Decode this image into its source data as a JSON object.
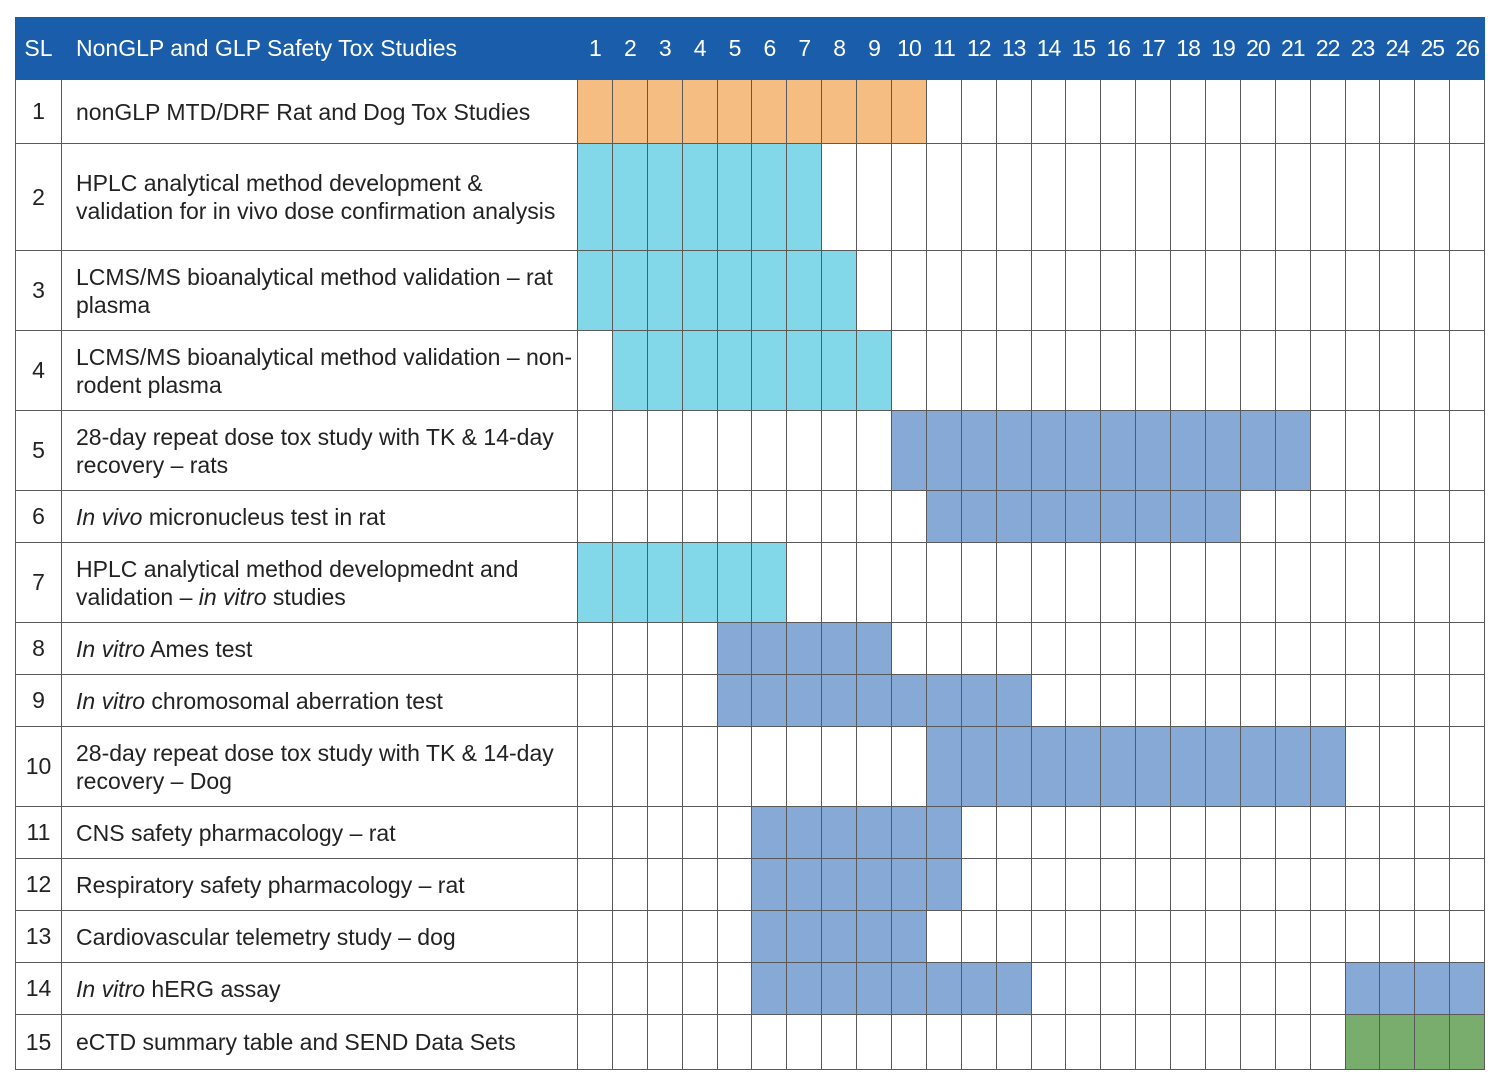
{
  "table": {
    "header": {
      "sl": "SL",
      "title": "NonGLP and GLP Safety Tox Studies"
    },
    "colors": {
      "header_bg": "#1a5eab",
      "orange": "#f5bd82",
      "cyan": "#82d8e9",
      "blue": "#86a9d6",
      "green": "#78ad6e"
    }
  },
  "chart_data": {
    "type": "table",
    "weeks": [
      1,
      2,
      3,
      4,
      5,
      6,
      7,
      8,
      9,
      10,
      11,
      12,
      13,
      14,
      15,
      16,
      17,
      18,
      19,
      20,
      21,
      22,
      23,
      24,
      25,
      26
    ],
    "rows": [
      {
        "sl": "1",
        "segments": [
          {
            "text": "nonGLP MTD/DRF Rat and Dog Tox Studies",
            "italic": false
          }
        ],
        "bars": [
          {
            "start": 1,
            "end": 10,
            "color": "orange"
          }
        ]
      },
      {
        "sl": "2",
        "segments": [
          {
            "text": "HPLC analytical method development & validation for in vivo dose confirmation analysis",
            "italic": false
          }
        ],
        "bars": [
          {
            "start": 1,
            "end": 7,
            "color": "cyan"
          }
        ]
      },
      {
        "sl": "3",
        "segments": [
          {
            "text": "LCMS/MS bioanalytical method validation – rat plasma",
            "italic": false
          }
        ],
        "bars": [
          {
            "start": 1,
            "end": 8,
            "color": "cyan"
          }
        ]
      },
      {
        "sl": "4",
        "segments": [
          {
            "text": "LCMS/MS bioanalytical method validation – non-rodent plasma",
            "italic": false
          }
        ],
        "bars": [
          {
            "start": 2,
            "end": 9,
            "color": "cyan"
          }
        ]
      },
      {
        "sl": "5",
        "segments": [
          {
            "text": "28-day repeat dose tox study with TK & 14-day recovery – rats",
            "italic": false
          }
        ],
        "bars": [
          {
            "start": 10,
            "end": 21,
            "color": "blue"
          }
        ]
      },
      {
        "sl": "6",
        "segments": [
          {
            "text": "In vivo",
            "italic": true
          },
          {
            "text": " micronucleus test in rat",
            "italic": false
          }
        ],
        "bars": [
          {
            "start": 11,
            "end": 19,
            "color": "blue"
          }
        ]
      },
      {
        "sl": "7",
        "segments": [
          {
            "text": "HPLC analytical method developmednt and validation – ",
            "italic": false
          },
          {
            "text": "in vitro",
            "italic": true
          },
          {
            "text": " studies",
            "italic": false
          }
        ],
        "bars": [
          {
            "start": 1,
            "end": 6,
            "color": "cyan"
          }
        ]
      },
      {
        "sl": "8",
        "segments": [
          {
            "text": "In vitro",
            "italic": true
          },
          {
            "text": " Ames test",
            "italic": false
          }
        ],
        "bars": [
          {
            "start": 5,
            "end": 9,
            "color": "blue"
          }
        ]
      },
      {
        "sl": "9",
        "segments": [
          {
            "text": "In vitro",
            "italic": true
          },
          {
            "text": " chromosomal aberration test",
            "italic": false
          }
        ],
        "bars": [
          {
            "start": 5,
            "end": 13,
            "color": "blue"
          }
        ]
      },
      {
        "sl": "10",
        "segments": [
          {
            "text": "28-day repeat dose tox study with TK & 14-day recovery – Dog",
            "italic": false
          }
        ],
        "bars": [
          {
            "start": 11,
            "end": 22,
            "color": "blue"
          }
        ]
      },
      {
        "sl": "11",
        "segments": [
          {
            "text": "CNS safety pharmacology – rat",
            "italic": false
          }
        ],
        "bars": [
          {
            "start": 6,
            "end": 11,
            "color": "blue"
          }
        ]
      },
      {
        "sl": "12",
        "segments": [
          {
            "text": "Respiratory safety pharmacology – rat",
            "italic": false
          }
        ],
        "bars": [
          {
            "start": 6,
            "end": 11,
            "color": "blue"
          }
        ]
      },
      {
        "sl": "13",
        "segments": [
          {
            "text": "Cardiovascular telemetry study – dog",
            "italic": false
          }
        ],
        "bars": [
          {
            "start": 6,
            "end": 10,
            "color": "blue"
          }
        ]
      },
      {
        "sl": "14",
        "segments": [
          {
            "text": "In vitro",
            "italic": true
          },
          {
            "text": " hERG assay",
            "italic": false
          }
        ],
        "bars": [
          {
            "start": 6,
            "end": 13,
            "color": "blue"
          },
          {
            "start": 23,
            "end": 26,
            "color": "blue"
          }
        ]
      },
      {
        "sl": "15",
        "segments": [
          {
            "text": "eCTD summary table and SEND Data Sets",
            "italic": false
          }
        ],
        "bars": [
          {
            "start": 23,
            "end": 26,
            "color": "green"
          }
        ]
      }
    ]
  }
}
